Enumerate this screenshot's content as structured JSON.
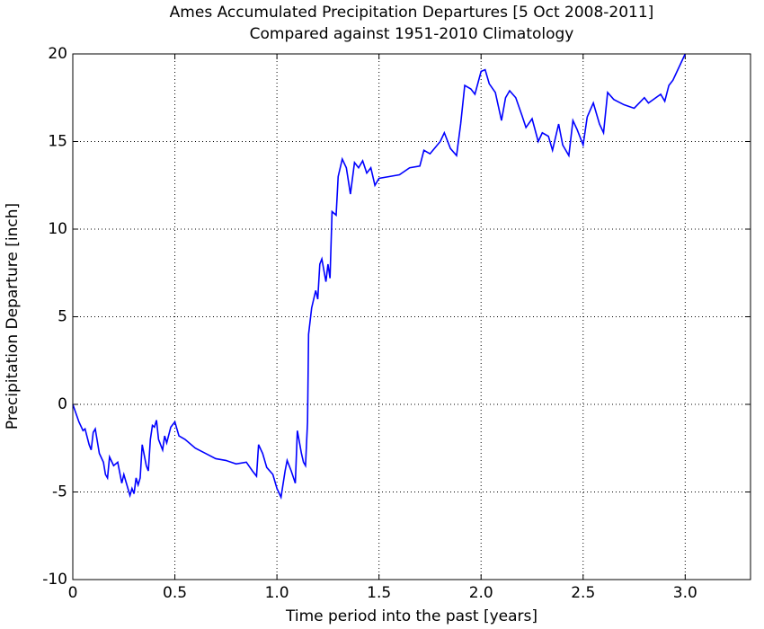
{
  "chart_data": {
    "type": "line",
    "title": "Ames Accumulated Precipitation Departures [5 Oct 2008-2011]",
    "subtitle": "Compared against 1951-2010 Climatology",
    "x_label": "Time period into the past [years]",
    "y_label": "Precipitation Departure [inch]",
    "xlim": [
      0,
      3.32
    ],
    "ylim": [
      -10,
      20
    ],
    "xticks": [
      0,
      0.5,
      {
        "value": 1,
        "label": "1.0"
      },
      1.5,
      {
        "value": 2,
        "label": "2.0"
      },
      2.5,
      {
        "value": 3,
        "label": "3.0"
      }
    ],
    "yticks": [
      -10,
      -5,
      0,
      5,
      10,
      15,
      20
    ],
    "grid": true,
    "series": [
      {
        "color": "#0000ff",
        "x": [
          0,
          0.03,
          0.05,
          0.06,
          0.08,
          0.09,
          0.1,
          0.11,
          0.13,
          0.15,
          0.16,
          0.17,
          0.18,
          0.2,
          0.22,
          0.24,
          0.25,
          0.27,
          0.28,
          0.29,
          0.3,
          0.31,
          0.32,
          0.33,
          0.34,
          0.36,
          0.37,
          0.38,
          0.39,
          0.4,
          0.41,
          0.42,
          0.44,
          0.45,
          0.46,
          0.48,
          0.5,
          0.52,
          0.55,
          0.6,
          0.65,
          0.7,
          0.75,
          0.8,
          0.85,
          0.88,
          0.9,
          0.91,
          0.93,
          0.95,
          0.98,
          1.0,
          1.02,
          1.04,
          1.05,
          1.07,
          1.09,
          1.1,
          1.12,
          1.13,
          1.14,
          1.15,
          1.155,
          1.17,
          1.19,
          1.2,
          1.21,
          1.22,
          1.24,
          1.25,
          1.26,
          1.27,
          1.29,
          1.3,
          1.32,
          1.34,
          1.36,
          1.38,
          1.4,
          1.42,
          1.44,
          1.46,
          1.48,
          1.5,
          1.55,
          1.6,
          1.65,
          1.7,
          1.72,
          1.75,
          1.8,
          1.82,
          1.85,
          1.88,
          1.9,
          1.92,
          1.95,
          1.97,
          2.0,
          2.02,
          2.04,
          2.07,
          2.1,
          2.12,
          2.14,
          2.17,
          2.2,
          2.22,
          2.25,
          2.28,
          2.3,
          2.33,
          2.35,
          2.38,
          2.4,
          2.43,
          2.45,
          2.47,
          2.5,
          2.52,
          2.55,
          2.58,
          2.6,
          2.62,
          2.65,
          2.7,
          2.75,
          2.8,
          2.82,
          2.88,
          2.9,
          2.92,
          2.94,
          2.96,
          2.98,
          3.0
        ],
        "values": [
          0,
          -1.0,
          -1.5,
          -1.4,
          -2.3,
          -2.6,
          -1.6,
          -1.4,
          -2.8,
          -3.3,
          -4.0,
          -4.2,
          -3.0,
          -3.5,
          -3.3,
          -4.5,
          -4.0,
          -4.8,
          -5.2,
          -4.8,
          -5.1,
          -4.2,
          -4.6,
          -4.2,
          -2.3,
          -3.5,
          -3.8,
          -2.0,
          -1.2,
          -1.3,
          -0.9,
          -2.0,
          -2.6,
          -1.8,
          -2.2,
          -1.3,
          -1.0,
          -1.8,
          -2.0,
          -2.5,
          -2.8,
          -3.1,
          -3.2,
          -3.4,
          -3.3,
          -3.8,
          -4.1,
          -2.3,
          -2.8,
          -3.6,
          -4.0,
          -4.8,
          -5.3,
          -3.8,
          -3.2,
          -3.8,
          -4.5,
          -1.5,
          -2.8,
          -3.3,
          -3.5,
          -1.0,
          4.0,
          5.5,
          6.5,
          6.0,
          8.0,
          8.3,
          7.0,
          8.0,
          7.2,
          11.0,
          10.8,
          13.0,
          14.0,
          13.5,
          12.0,
          13.8,
          13.5,
          13.9,
          13.2,
          13.5,
          12.5,
          12.9,
          13.0,
          13.1,
          13.5,
          13.6,
          14.5,
          14.3,
          15.0,
          15.5,
          14.6,
          14.2,
          16.0,
          18.2,
          18.0,
          17.7,
          19.0,
          19.1,
          18.3,
          17.8,
          16.2,
          17.5,
          17.9,
          17.5,
          16.5,
          15.8,
          16.3,
          15.0,
          15.5,
          15.3,
          14.5,
          16.0,
          14.8,
          14.2,
          16.2,
          15.7,
          14.8,
          16.4,
          17.2,
          16.0,
          15.5,
          17.8,
          17.4,
          17.1,
          16.9,
          17.5,
          17.2,
          17.7,
          17.3,
          18.2,
          18.5,
          19.0,
          19.5,
          20.0
        ]
      }
    ]
  }
}
